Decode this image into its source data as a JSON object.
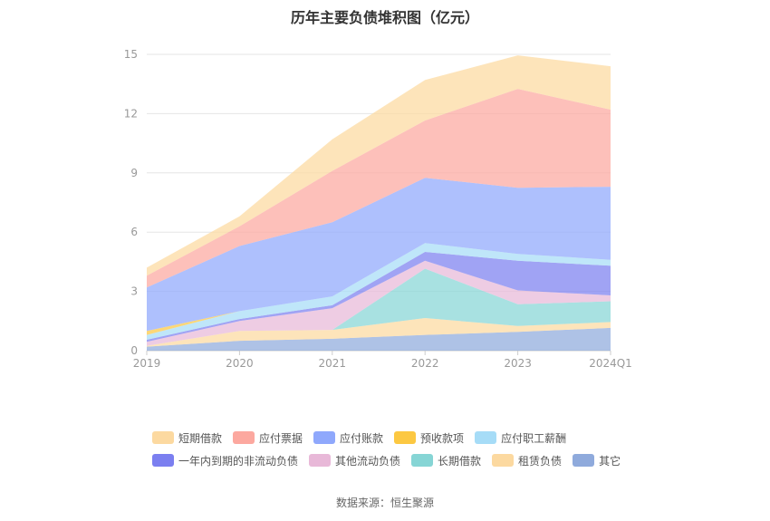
{
  "chart_data": {
    "type": "area",
    "stacked": true,
    "title": "历年主要负债堆积图（亿元）",
    "categories": [
      "2019",
      "2020",
      "2021",
      "2022",
      "2023",
      "2024Q1"
    ],
    "ylim": [
      0,
      15
    ],
    "yticks": [
      0,
      3,
      6,
      9,
      12,
      15
    ],
    "grid": true,
    "legend_position": "bottom",
    "series": [
      {
        "name": "其它",
        "color": "#8faadc",
        "values": [
          0.2,
          0.5,
          0.6,
          0.8,
          0.95,
          1.15
        ]
      },
      {
        "name": "租赁负债",
        "color": "#fcd9a0",
        "values": [
          0.05,
          0.5,
          0.45,
          0.85,
          0.3,
          0.3
        ]
      },
      {
        "name": "长期借款",
        "color": "#86d5d5",
        "values": [
          0,
          0,
          0,
          2.5,
          1.1,
          1.05
        ]
      },
      {
        "name": "其他流动负债",
        "color": "#e8b8d8",
        "values": [
          0.2,
          0.5,
          1.1,
          0.4,
          0.7,
          0.3
        ]
      },
      {
        "name": "一年内到期的非流动负债",
        "color": "#7b7ff0",
        "values": [
          0.1,
          0.1,
          0.15,
          0.45,
          1.5,
          1.5
        ]
      },
      {
        "name": "应付职工薪酬",
        "color": "#a6dcf7",
        "values": [
          0.25,
          0.4,
          0.45,
          0.45,
          0.35,
          0.3
        ]
      },
      {
        "name": "预收款项",
        "color": "#fcc842",
        "values": [
          0.2,
          0,
          0,
          0,
          0,
          0
        ]
      },
      {
        "name": "应付账款",
        "color": "#8fa8fc",
        "values": [
          2.2,
          3.3,
          3.75,
          3.3,
          3.35,
          3.7
        ]
      },
      {
        "name": "应付票据",
        "color": "#fca89f",
        "values": [
          0.6,
          1.0,
          2.6,
          2.9,
          5.0,
          3.9
        ]
      },
      {
        "name": "短期借款",
        "color": "#fcd9a0",
        "values": [
          0.4,
          0.5,
          1.6,
          2.05,
          1.7,
          2.2
        ]
      }
    ],
    "legend_rows": [
      [
        "短期借款",
        "应付票据",
        "应付账款",
        "预收款项",
        "应付职工薪酬"
      ],
      [
        "一年内到期的非流动负债",
        "其他流动负债",
        "长期借款",
        "租赁负债",
        "其它"
      ]
    ],
    "legend_colors": {
      "短期借款": "#fcd9a0",
      "应付票据": "#fca89f",
      "应付账款": "#8fa8fc",
      "预收款项": "#fcc842",
      "应付职工薪酬": "#a6dcf7",
      "一年内到期的非流动负债": "#7b7ff0",
      "其他流动负债": "#e8b8d8",
      "长期借款": "#86d5d5",
      "租赁负债": "#fcd9a0",
      "其它": "#8faadc"
    }
  },
  "source_text": "数据来源：恒生聚源"
}
